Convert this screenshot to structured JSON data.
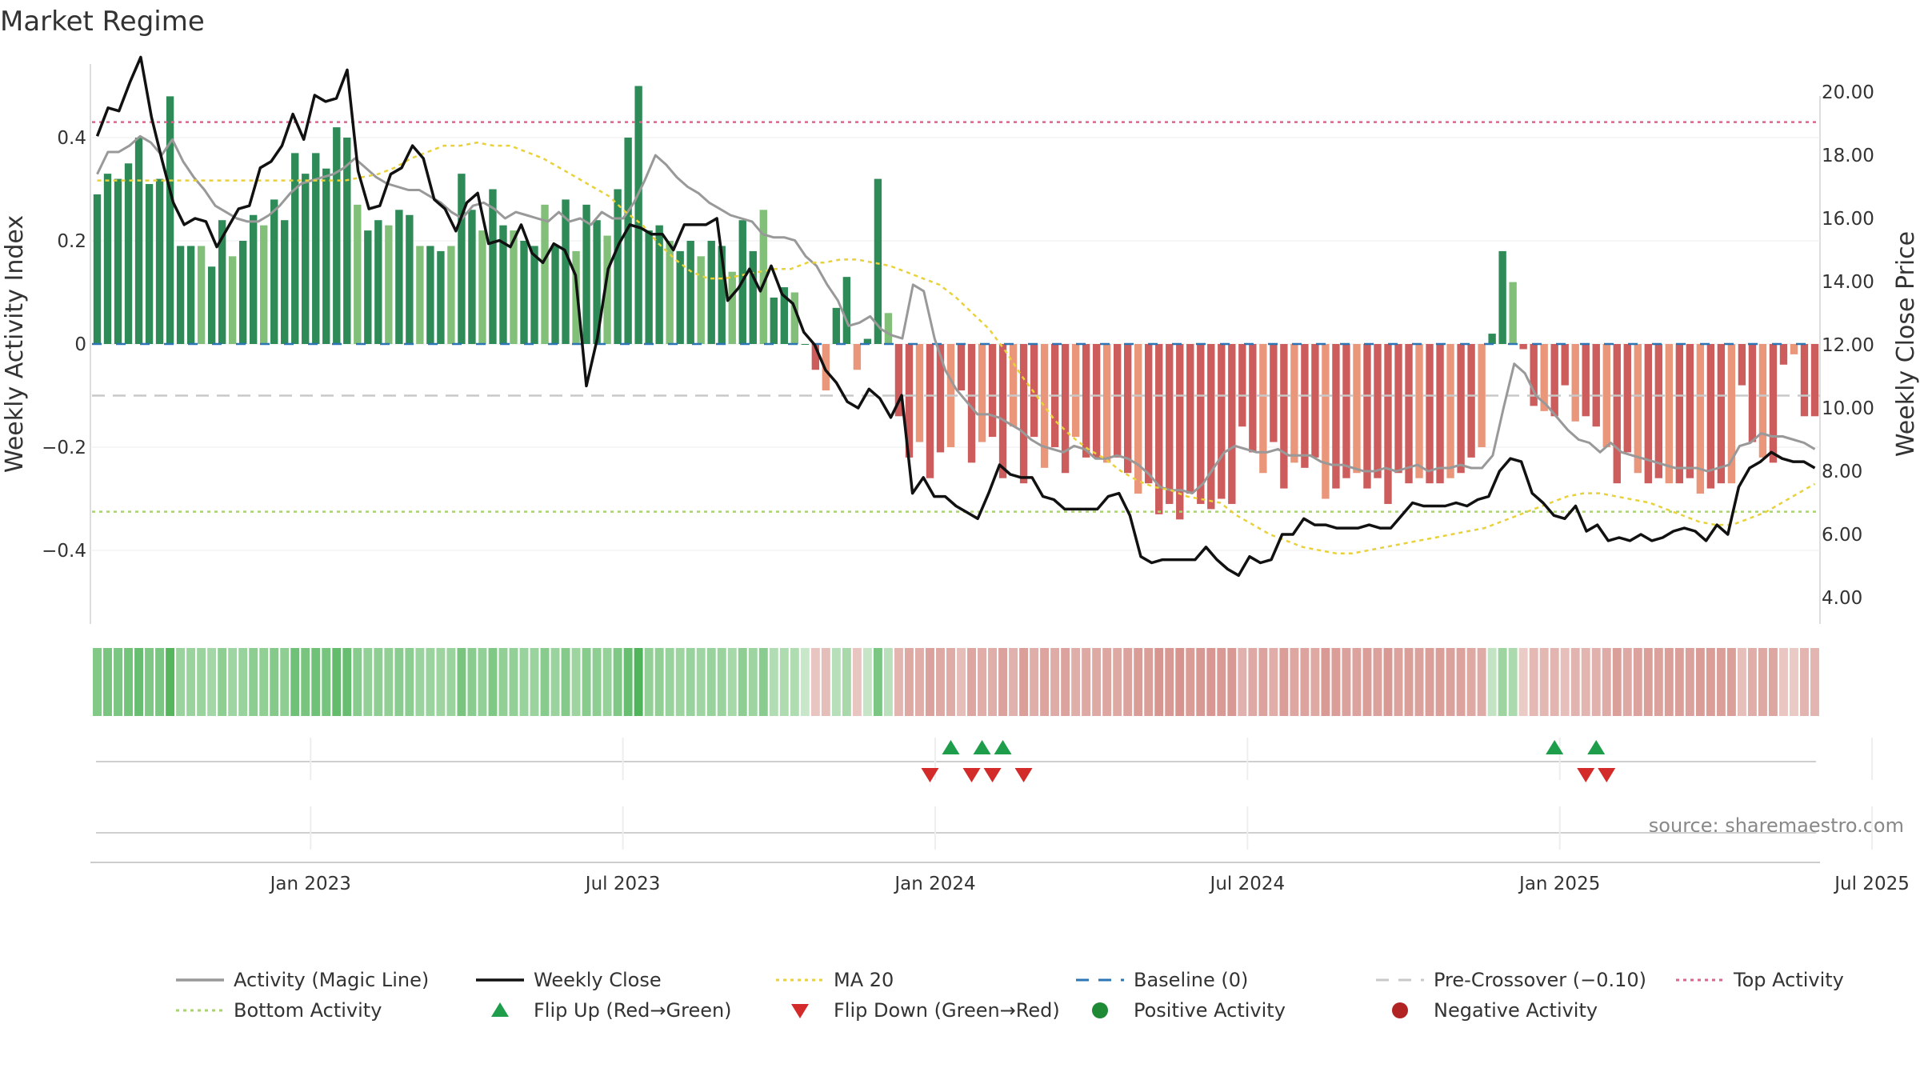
{
  "chart_data": {
    "type": "bar",
    "title": "Market Regime",
    "ylabel_left": "Weekly Activity Index",
    "ylabel_right": "Weekly Close Price",
    "source": "source: sharemaestro.com",
    "y_left_ticks": [
      "0.4",
      "0.2",
      "0",
      "−0.2",
      "−0.4"
    ],
    "y_left_values": [
      0.4,
      0.2,
      0,
      -0.2,
      -0.4
    ],
    "y_left_range": [
      -0.54,
      0.54
    ],
    "y_right_ticks": [
      "20.00",
      "18.00",
      "16.00",
      "14.00",
      "12.00",
      "10.00",
      "8.00",
      "6.00",
      "4.00"
    ],
    "y_right_values": [
      20,
      18,
      16,
      14,
      12,
      10,
      8,
      6,
      4
    ],
    "y_right_range": [
      3.4,
      23.1
    ],
    "x_tick_labels": [
      "Jan 2023",
      "Jul 2023",
      "Jan 2024",
      "Jul 2024",
      "Jan 2025",
      "Jul 2025"
    ],
    "x_tick_weeks": [
      21,
      51,
      81,
      111,
      141,
      171
    ],
    "reference_lines": {
      "top_activity": 0.43,
      "bottom_activity": -0.325,
      "pre_crossover": -0.1,
      "baseline": 0
    },
    "activity_bars": [
      0.29,
      0.33,
      0.32,
      0.35,
      0.4,
      0.31,
      0.32,
      0.48,
      0.19,
      0.19,
      0.19,
      0.15,
      0.24,
      0.17,
      0.2,
      0.25,
      0.23,
      0.28,
      0.24,
      0.37,
      0.33,
      0.37,
      0.34,
      0.42,
      0.4,
      0.27,
      0.22,
      0.24,
      0.23,
      0.26,
      0.25,
      0.19,
      0.19,
      0.18,
      0.19,
      0.33,
      0.26,
      0.22,
      0.3,
      0.23,
      0.22,
      0.2,
      0.19,
      0.27,
      0.19,
      0.28,
      0.18,
      0.27,
      0.24,
      0.21,
      0.3,
      0.4,
      0.5,
      0.22,
      0.23,
      0.2,
      0.18,
      0.2,
      0.17,
      0.2,
      0.19,
      0.14,
      0.24,
      0.18,
      0.26,
      0.09,
      0.11,
      0.1,
      0.0,
      -0.05,
      -0.09,
      0.07,
      0.13,
      -0.05,
      0.01,
      0.32,
      0.06,
      -0.14,
      -0.22,
      -0.19,
      -0.26,
      -0.21,
      -0.2,
      -0.09,
      -0.23,
      -0.19,
      -0.18,
      -0.26,
      -0.16,
      -0.27,
      -0.18,
      -0.24,
      -0.2,
      -0.25,
      -0.18,
      -0.22,
      -0.22,
      -0.23,
      -0.22,
      -0.25,
      -0.29,
      -0.27,
      -0.33,
      -0.31,
      -0.34,
      -0.29,
      -0.31,
      -0.32,
      -0.3,
      -0.31,
      -0.16,
      -0.21,
      -0.25,
      -0.19,
      -0.28,
      -0.23,
      -0.24,
      -0.22,
      -0.3,
      -0.28,
      -0.26,
      -0.25,
      -0.28,
      -0.26,
      -0.31,
      -0.25,
      -0.27,
      -0.26,
      -0.27,
      -0.27,
      -0.26,
      -0.25,
      -0.22,
      -0.2,
      0.02,
      0.18,
      0.12,
      -0.01,
      -0.12,
      -0.13,
      -0.14,
      -0.08,
      -0.15,
      -0.14,
      -0.16,
      -0.2,
      -0.27,
      -0.21,
      -0.25,
      -0.27,
      -0.26,
      -0.27,
      -0.27,
      -0.26,
      -0.29,
      -0.28,
      -0.27,
      -0.27,
      -0.08,
      -0.19,
      -0.22,
      -0.23,
      -0.04,
      -0.02,
      -0.14,
      -0.14
    ],
    "series": [
      {
        "name": "Weekly Close",
        "values": [
          18.6,
          19.5,
          19.4,
          20.3,
          21.1,
          19.2,
          17.8,
          16.5,
          15.8,
          16.0,
          15.9,
          15.1,
          15.7,
          16.3,
          16.4,
          17.6,
          17.8,
          18.3,
          19.3,
          18.5,
          19.9,
          19.7,
          19.8,
          20.7,
          17.5,
          16.3,
          16.4,
          17.4,
          17.6,
          18.3,
          17.9,
          16.6,
          16.3,
          15.6,
          16.5,
          16.8,
          15.2,
          15.3,
          15.1,
          15.8,
          14.9,
          14.6,
          15.2,
          15.0,
          14.2,
          10.7,
          12.2,
          14.4,
          15.2,
          15.8,
          15.7,
          15.5,
          15.5,
          15.0,
          15.8,
          15.8,
          15.8,
          16.0,
          13.4,
          13.8,
          14.4,
          13.7,
          14.5,
          13.6,
          13.3,
          12.4,
          12.0,
          11.2,
          10.8,
          10.2,
          10.0,
          10.6,
          10.3,
          9.7,
          10.4,
          7.3,
          7.8,
          7.2,
          7.2,
          6.9,
          6.7,
          6.5,
          7.3,
          8.2,
          7.9,
          7.8,
          7.8,
          7.2,
          7.1,
          6.8,
          6.8,
          6.8,
          6.8,
          7.2,
          7.3,
          6.6,
          5.3,
          5.1,
          5.2,
          5.2,
          5.2,
          5.2,
          5.6,
          5.2,
          4.9,
          4.7,
          5.3,
          5.1,
          5.2,
          6.0,
          6.0,
          6.5,
          6.3,
          6.3,
          6.2,
          6.2,
          6.2,
          6.3,
          6.2,
          6.2,
          6.6,
          7.0,
          6.9,
          6.9,
          6.9,
          7.0,
          6.9,
          7.1,
          7.2,
          8.0,
          8.4,
          8.3,
          7.3,
          7.0,
          6.6,
          6.5,
          6.9,
          6.1,
          6.3,
          5.8,
          5.9,
          5.8,
          6.0,
          5.8,
          5.9,
          6.1,
          6.2,
          6.1,
          5.8,
          6.3,
          6.0,
          7.5,
          8.1,
          8.3,
          8.6,
          8.4,
          8.3,
          8.3,
          8.1
        ]
      },
      {
        "name": "Activity (Magic Line)",
        "values": [
          17.4,
          18.1,
          18.1,
          18.3,
          18.6,
          18.4,
          18.0,
          18.5,
          17.8,
          17.3,
          16.9,
          16.4,
          16.2,
          16.0,
          15.9,
          15.9,
          16.1,
          16.4,
          16.8,
          17.1,
          17.2,
          17.3,
          17.4,
          17.6,
          17.9,
          17.6,
          17.3,
          17.1,
          17.0,
          16.9,
          16.9,
          16.7,
          16.5,
          16.2,
          16.0,
          16.4,
          16.5,
          16.3,
          16.0,
          16.2,
          16.1,
          16.0,
          15.9,
          16.2,
          15.9,
          16.0,
          15.8,
          16.2,
          16.0,
          16.0,
          16.5,
          17.2,
          18.0,
          17.7,
          17.3,
          17.0,
          16.8,
          16.5,
          16.3,
          16.1,
          16.0,
          15.9,
          15.5,
          15.4,
          15.4,
          15.3,
          14.8,
          14.5,
          13.9,
          13.4,
          12.6,
          12.7,
          12.9,
          12.5,
          12.3,
          12.2,
          13.9,
          13.7,
          12.2,
          11.2,
          10.6,
          10.2,
          9.8,
          9.8,
          9.7,
          9.5,
          9.3,
          9.0,
          8.8,
          8.7,
          8.6,
          8.8,
          8.7,
          8.4,
          8.4,
          8.5,
          8.4,
          8.2,
          7.9,
          7.5,
          7.4,
          7.4,
          7.3,
          7.6,
          8.1,
          8.6,
          8.8,
          8.7,
          8.6,
          8.6,
          8.7,
          8.5,
          8.5,
          8.5,
          8.3,
          8.2,
          8.2,
          8.1,
          8.0,
          8.0,
          8.1,
          8.0,
          8.1,
          8.2,
          8.0,
          8.1,
          8.1,
          8.2,
          8.1,
          8.1,
          8.5,
          10.0,
          11.4,
          11.1,
          10.4,
          10.1,
          9.7,
          9.3,
          9.0,
          8.9,
          8.6,
          8.9,
          8.6,
          8.5,
          8.4,
          8.3,
          8.2,
          8.1,
          8.1,
          8.1,
          8.0,
          8.1,
          8.2,
          8.8,
          8.9,
          9.2,
          9.1,
          9.1,
          9.0,
          8.9,
          8.7
        ]
      },
      {
        "name": "MA 20",
        "values": [
          17.2,
          17.2,
          17.2,
          17.2,
          17.2,
          17.2,
          17.2,
          17.2,
          17.2,
          17.2,
          17.2,
          17.2,
          17.2,
          17.2,
          17.2,
          17.2,
          17.3,
          17.4,
          17.6,
          17.9,
          18.1,
          18.3,
          18.3,
          18.4,
          18.3,
          18.3,
          18.1,
          17.9,
          17.6,
          17.3,
          17.0,
          16.7,
          16.2,
          15.8,
          15.2,
          14.7,
          14.3,
          14.1,
          14.1,
          14.2,
          14.3,
          14.4,
          14.4,
          14.6,
          14.6,
          14.7,
          14.7,
          14.6,
          14.5,
          14.3,
          14.1,
          13.9,
          13.5,
          13.0,
          12.5,
          11.8,
          11.0,
          10.3,
          9.6,
          9.1,
          8.7,
          8.4,
          8.0,
          7.7,
          7.5,
          7.4,
          7.2,
          7.1,
          7.0,
          6.6,
          6.3,
          6.0,
          5.8,
          5.6,
          5.5,
          5.4,
          5.4,
          5.5,
          5.6,
          5.7,
          5.8,
          5.9,
          6.0,
          6.1,
          6.2,
          6.4,
          6.6,
          6.8,
          7.0,
          7.2,
          7.3,
          7.3,
          7.2,
          7.1,
          7.0,
          6.8,
          6.6,
          6.4,
          6.3,
          6.3,
          6.5,
          6.7,
          7.0,
          7.3,
          7.6
        ]
      }
    ],
    "flip_up_weeks": [
      82,
      85,
      87,
      140,
      144
    ],
    "flip_down_weeks": [
      80,
      84,
      86,
      89,
      143,
      145
    ],
    "legend": [
      {
        "label": "Activity (Magic Line)",
        "kind": "line",
        "color": "#999999"
      },
      {
        "label": "Weekly Close",
        "kind": "line",
        "color": "#111111"
      },
      {
        "label": "MA 20",
        "kind": "dotted",
        "color": "#e8d13a"
      },
      {
        "label": "Baseline (0)",
        "kind": "dashed",
        "color": "#2e75b6"
      },
      {
        "label": "Pre-Crossover (−0.10)",
        "kind": "dashed",
        "color": "#c8c8c8"
      },
      {
        "label": "Top Activity",
        "kind": "dotted",
        "color": "#d9668f"
      },
      {
        "label": "Bottom Activity",
        "kind": "dotted",
        "color": "#a8d46b"
      },
      {
        "label": "Flip Up (Red→Green)",
        "kind": "tri-up",
        "color": "#1e9e4a"
      },
      {
        "label": "Flip Down (Green→Red)",
        "kind": "tri-down",
        "color": "#d32a2a"
      },
      {
        "label": "Positive Activity",
        "kind": "dot",
        "color": "#1e8a36"
      },
      {
        "label": "Negative Activity",
        "kind": "dot",
        "color": "#b22424"
      }
    ],
    "colors": {
      "pos_strong": "#2e8b57",
      "pos_light": "#82c07a",
      "neg_strong": "#cd5c5c",
      "neg_light": "#e9967a"
    }
  }
}
